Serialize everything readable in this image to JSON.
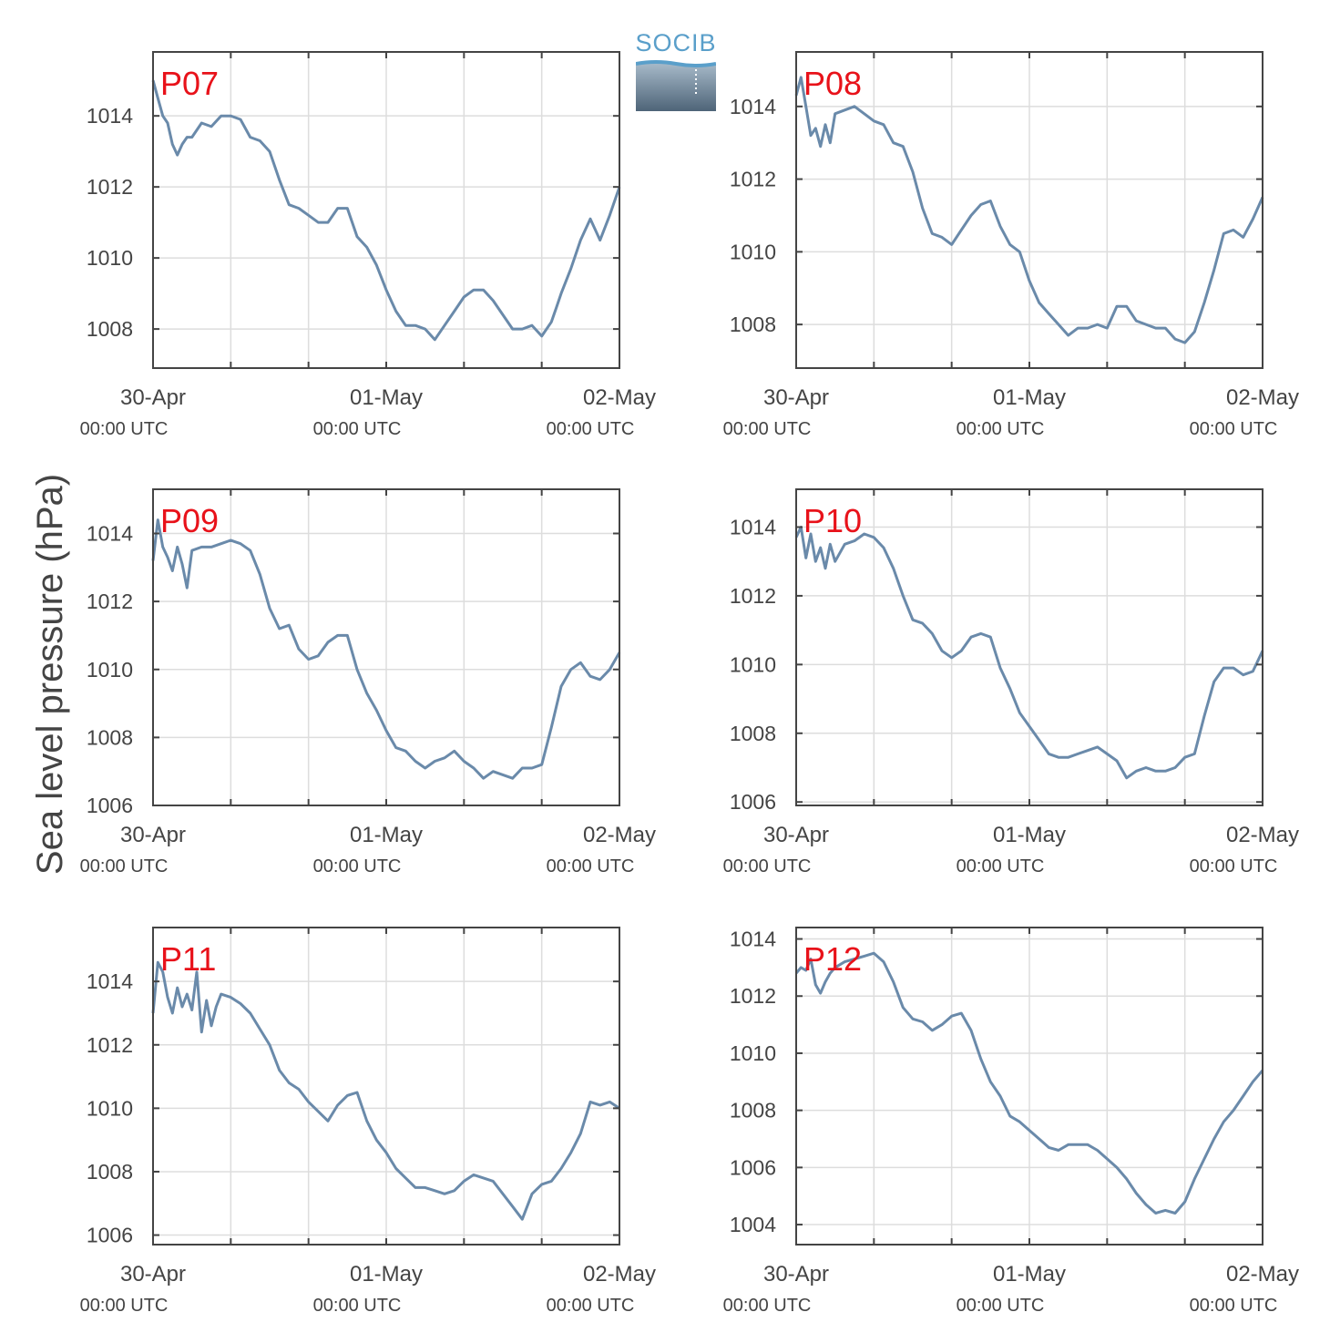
{
  "ylabel": "Sea level pressure (hPa)",
  "logo_text": "SOCIB",
  "colors": {
    "line": "#6a8aaa",
    "panel_label": "#e8121a",
    "grid": "#dddddd",
    "axis": "#444444",
    "text": "#444444"
  },
  "chart_data": [
    {
      "type": "line",
      "label": "P07",
      "xlim": [
        0,
        48
      ],
      "ylim": [
        1006.9,
        1015.8
      ],
      "yticks": [
        1008,
        1010,
        1012,
        1014
      ],
      "xticks": [
        {
          "x": 0,
          "label": "30-Apr",
          "sub": "00:00 UTC"
        },
        {
          "x": 24,
          "label": "01-May",
          "sub": "00:00 UTC"
        },
        {
          "x": 48,
          "label": "02-May",
          "sub": "00:00 UTC"
        }
      ],
      "x": [
        0,
        0.5,
        1,
        1.5,
        2,
        2.5,
        3,
        3.5,
        4,
        5,
        6,
        7,
        8,
        9,
        10,
        11,
        12,
        13,
        14,
        15,
        16,
        17,
        18,
        19,
        20,
        21,
        22,
        23,
        24,
        25,
        26,
        27,
        28,
        29,
        30,
        31,
        32,
        33,
        34,
        35,
        36,
        37,
        38,
        39,
        40,
        41,
        41.5,
        42,
        43,
        44,
        45,
        46,
        47,
        48
      ],
      "y": [
        1015,
        1014.5,
        1014,
        1013.8,
        1013.2,
        1012.9,
        1013.2,
        1013.4,
        1013.4,
        1013.8,
        1013.7,
        1014,
        1014,
        1013.9,
        1013.4,
        1013.3,
        1013,
        1012.2,
        1011.5,
        1011.4,
        1011.2,
        1011,
        1011,
        1011.4,
        1011.4,
        1010.6,
        1010.3,
        1009.8,
        1009.1,
        1008.5,
        1008.1,
        1008.1,
        1008,
        1007.7,
        1008.1,
        1008.5,
        1008.9,
        1009.1,
        1009.1,
        1008.8,
        1008.4,
        1008.0,
        1008.0,
        1008.1,
        1007.8,
        1008.2,
        1008.6,
        1009.0,
        1009.7,
        1010.5,
        1011.1,
        1010.5,
        1011.2,
        1012.0
      ]
    },
    {
      "type": "line",
      "label": "P08",
      "xlim": [
        0,
        48
      ],
      "ylim": [
        1006.8,
        1015.5
      ],
      "yticks": [
        1008,
        1010,
        1012,
        1014
      ],
      "xticks": [
        {
          "x": 0,
          "label": "30-Apr",
          "sub": "00:00 UTC"
        },
        {
          "x": 24,
          "label": "01-May",
          "sub": "00:00 UTC"
        },
        {
          "x": 48,
          "label": "02-May",
          "sub": "00:00 UTC"
        }
      ],
      "x": [
        0,
        0.5,
        1,
        1.5,
        2,
        2.5,
        3,
        3.5,
        4,
        5,
        6,
        7,
        8,
        9,
        10,
        11,
        12,
        13,
        14,
        15,
        16,
        17,
        18,
        19,
        20,
        21,
        22,
        23,
        24,
        25,
        26,
        27,
        28,
        29,
        30,
        31,
        32,
        33,
        34,
        35,
        36,
        37,
        38,
        39,
        40,
        41,
        42,
        43,
        44,
        45,
        46,
        47,
        48
      ],
      "y": [
        1014.3,
        1014.8,
        1014.0,
        1013.2,
        1013.4,
        1012.9,
        1013.5,
        1013.0,
        1013.8,
        1013.9,
        1014.0,
        1013.8,
        1013.6,
        1013.5,
        1013.0,
        1012.9,
        1012.2,
        1011.2,
        1010.5,
        1010.4,
        1010.2,
        1010.6,
        1011.0,
        1011.3,
        1011.4,
        1010.7,
        1010.2,
        1010.0,
        1009.2,
        1008.6,
        1008.3,
        1008.0,
        1007.7,
        1007.9,
        1007.9,
        1008.0,
        1007.9,
        1008.5,
        1008.5,
        1008.1,
        1008.0,
        1007.9,
        1007.9,
        1007.6,
        1007.5,
        1007.8,
        1008.6,
        1009.5,
        1010.5,
        1010.6,
        1010.4,
        1010.9,
        1011.5
      ]
    },
    {
      "type": "line",
      "label": "P09",
      "xlim": [
        0,
        48
      ],
      "ylim": [
        1006,
        1015.3
      ],
      "yticks": [
        1006,
        1008,
        1010,
        1012,
        1014
      ],
      "xticks": [
        {
          "x": 0,
          "label": "30-Apr",
          "sub": "00:00 UTC"
        },
        {
          "x": 24,
          "label": "01-May",
          "sub": "00:00 UTC"
        },
        {
          "x": 48,
          "label": "02-May",
          "sub": "00:00 UTC"
        }
      ],
      "x": [
        0,
        0.5,
        1,
        1.5,
        2,
        2.5,
        3,
        3.5,
        4,
        5,
        6,
        7,
        8,
        9,
        10,
        11,
        12,
        13,
        14,
        15,
        16,
        17,
        18,
        19,
        20,
        21,
        22,
        23,
        24,
        25,
        26,
        27,
        28,
        29,
        30,
        31,
        32,
        33,
        34,
        35,
        36,
        37,
        38,
        39,
        40,
        41,
        42,
        43,
        44,
        45,
        46,
        47,
        48
      ],
      "y": [
        1013.2,
        1014.4,
        1013.6,
        1013.3,
        1012.9,
        1013.6,
        1013.1,
        1012.4,
        1013.5,
        1013.6,
        1013.6,
        1013.7,
        1013.8,
        1013.7,
        1013.5,
        1012.8,
        1011.8,
        1011.2,
        1011.3,
        1010.6,
        1010.3,
        1010.4,
        1010.8,
        1011.0,
        1011.0,
        1010.0,
        1009.3,
        1008.8,
        1008.2,
        1007.7,
        1007.6,
        1007.3,
        1007.1,
        1007.3,
        1007.4,
        1007.6,
        1007.3,
        1007.1,
        1006.8,
        1007.0,
        1006.9,
        1006.8,
        1007.1,
        1007.1,
        1007.2,
        1008.3,
        1009.5,
        1010.0,
        1010.2,
        1009.8,
        1009.7,
        1010.0,
        1010.5
      ]
    },
    {
      "type": "line",
      "label": "P10",
      "xlim": [
        0,
        48
      ],
      "ylim": [
        1005.9,
        1015.1
      ],
      "yticks": [
        1006,
        1008,
        1010,
        1012,
        1014
      ],
      "xticks": [
        {
          "x": 0,
          "label": "30-Apr",
          "sub": "00:00 UTC"
        },
        {
          "x": 24,
          "label": "01-May",
          "sub": "00:00 UTC"
        },
        {
          "x": 48,
          "label": "02-May",
          "sub": "00:00 UTC"
        }
      ],
      "x": [
        0,
        0.5,
        1,
        1.5,
        2,
        2.5,
        3,
        3.5,
        4,
        5,
        6,
        7,
        8,
        9,
        10,
        11,
        12,
        13,
        14,
        15,
        16,
        17,
        18,
        19,
        20,
        21,
        22,
        23,
        24,
        25,
        26,
        27,
        28,
        29,
        30,
        31,
        32,
        33,
        34,
        35,
        36,
        37,
        38,
        39,
        40,
        41,
        42,
        43,
        44,
        45,
        46,
        47,
        48
      ],
      "y": [
        1013.7,
        1014.0,
        1013.1,
        1013.8,
        1013.0,
        1013.4,
        1012.8,
        1013.5,
        1013.0,
        1013.5,
        1013.6,
        1013.8,
        1013.7,
        1013.4,
        1012.8,
        1012.0,
        1011.3,
        1011.2,
        1010.9,
        1010.4,
        1010.2,
        1010.4,
        1010.8,
        1010.9,
        1010.8,
        1009.9,
        1009.3,
        1008.6,
        1008.2,
        1007.8,
        1007.4,
        1007.3,
        1007.3,
        1007.4,
        1007.5,
        1007.6,
        1007.4,
        1007.2,
        1006.7,
        1006.9,
        1007.0,
        1006.9,
        1006.9,
        1007.0,
        1007.3,
        1007.4,
        1008.5,
        1009.5,
        1009.9,
        1009.9,
        1009.7,
        1009.8,
        1010.4
      ]
    },
    {
      "type": "line",
      "label": "P11",
      "xlim": [
        0,
        48
      ],
      "ylim": [
        1005.7,
        1015.7
      ],
      "yticks": [
        1006,
        1008,
        1010,
        1012,
        1014
      ],
      "xticks": [
        {
          "x": 0,
          "label": "30-Apr",
          "sub": "00:00 UTC"
        },
        {
          "x": 24,
          "label": "01-May",
          "sub": "00:00 UTC"
        },
        {
          "x": 48,
          "label": "02-May",
          "sub": "00:00 UTC"
        }
      ],
      "x": [
        0,
        0.5,
        1,
        1.5,
        2,
        2.5,
        3,
        3.5,
        4,
        4.5,
        5,
        5.5,
        6,
        6.5,
        7,
        8,
        9,
        10,
        11,
        12,
        13,
        14,
        15,
        16,
        17,
        18,
        19,
        20,
        21,
        22,
        23,
        24,
        25,
        26,
        27,
        28,
        29,
        30,
        31,
        32,
        33,
        34,
        35,
        36,
        37,
        38,
        39,
        40,
        41,
        42,
        43,
        44,
        45,
        46,
        47,
        48
      ],
      "y": [
        1013.0,
        1014.6,
        1014.3,
        1013.5,
        1013.0,
        1013.8,
        1013.2,
        1013.6,
        1013.1,
        1014.3,
        1012.4,
        1013.4,
        1012.6,
        1013.2,
        1013.6,
        1013.5,
        1013.3,
        1013.0,
        1012.5,
        1012.0,
        1011.2,
        1010.8,
        1010.6,
        1010.2,
        1009.9,
        1009.6,
        1010.1,
        1010.4,
        1010.5,
        1009.6,
        1009.0,
        1008.6,
        1008.1,
        1007.8,
        1007.5,
        1007.5,
        1007.4,
        1007.3,
        1007.4,
        1007.7,
        1007.9,
        1007.8,
        1007.7,
        1007.3,
        1006.9,
        1006.5,
        1007.3,
        1007.6,
        1007.7,
        1008.1,
        1008.6,
        1009.2,
        1010.2,
        1010.1,
        1010.2,
        1010.0
      ]
    },
    {
      "type": "line",
      "label": "P12",
      "xlim": [
        0,
        48
      ],
      "ylim": [
        1003.3,
        1014.4
      ],
      "yticks": [
        1004,
        1006,
        1008,
        1010,
        1012,
        1014
      ],
      "xticks": [
        {
          "x": 0,
          "label": "30-Apr",
          "sub": "00:00 UTC"
        },
        {
          "x": 24,
          "label": "01-May",
          "sub": "00:00 UTC"
        },
        {
          "x": 48,
          "label": "02-May",
          "sub": "00:00 UTC"
        }
      ],
      "x": [
        0,
        0.5,
        1,
        1.5,
        2,
        2.5,
        3,
        3.5,
        4,
        5,
        6,
        7,
        8,
        9,
        10,
        11,
        12,
        13,
        14,
        15,
        16,
        17,
        18,
        19,
        20,
        21,
        22,
        23,
        24,
        25,
        26,
        27,
        28,
        29,
        30,
        31,
        32,
        33,
        34,
        35,
        36,
        37,
        38,
        39,
        40,
        41,
        42,
        43,
        44,
        45,
        46,
        47,
        48
      ],
      "y": [
        1012.8,
        1013.0,
        1012.9,
        1013.3,
        1012.4,
        1012.1,
        1012.5,
        1012.8,
        1013.0,
        1013.2,
        1013.3,
        1013.4,
        1013.5,
        1013.2,
        1012.5,
        1011.6,
        1011.2,
        1011.1,
        1010.8,
        1011.0,
        1011.3,
        1011.4,
        1010.8,
        1009.8,
        1009.0,
        1008.5,
        1007.8,
        1007.6,
        1007.3,
        1007.0,
        1006.7,
        1006.6,
        1006.8,
        1006.8,
        1006.8,
        1006.6,
        1006.3,
        1006.0,
        1005.6,
        1005.1,
        1004.7,
        1004.4,
        1004.5,
        1004.4,
        1004.8,
        1005.6,
        1006.3,
        1007.0,
        1007.6,
        1008.0,
        1008.5,
        1009.0,
        1009.4
      ]
    }
  ]
}
